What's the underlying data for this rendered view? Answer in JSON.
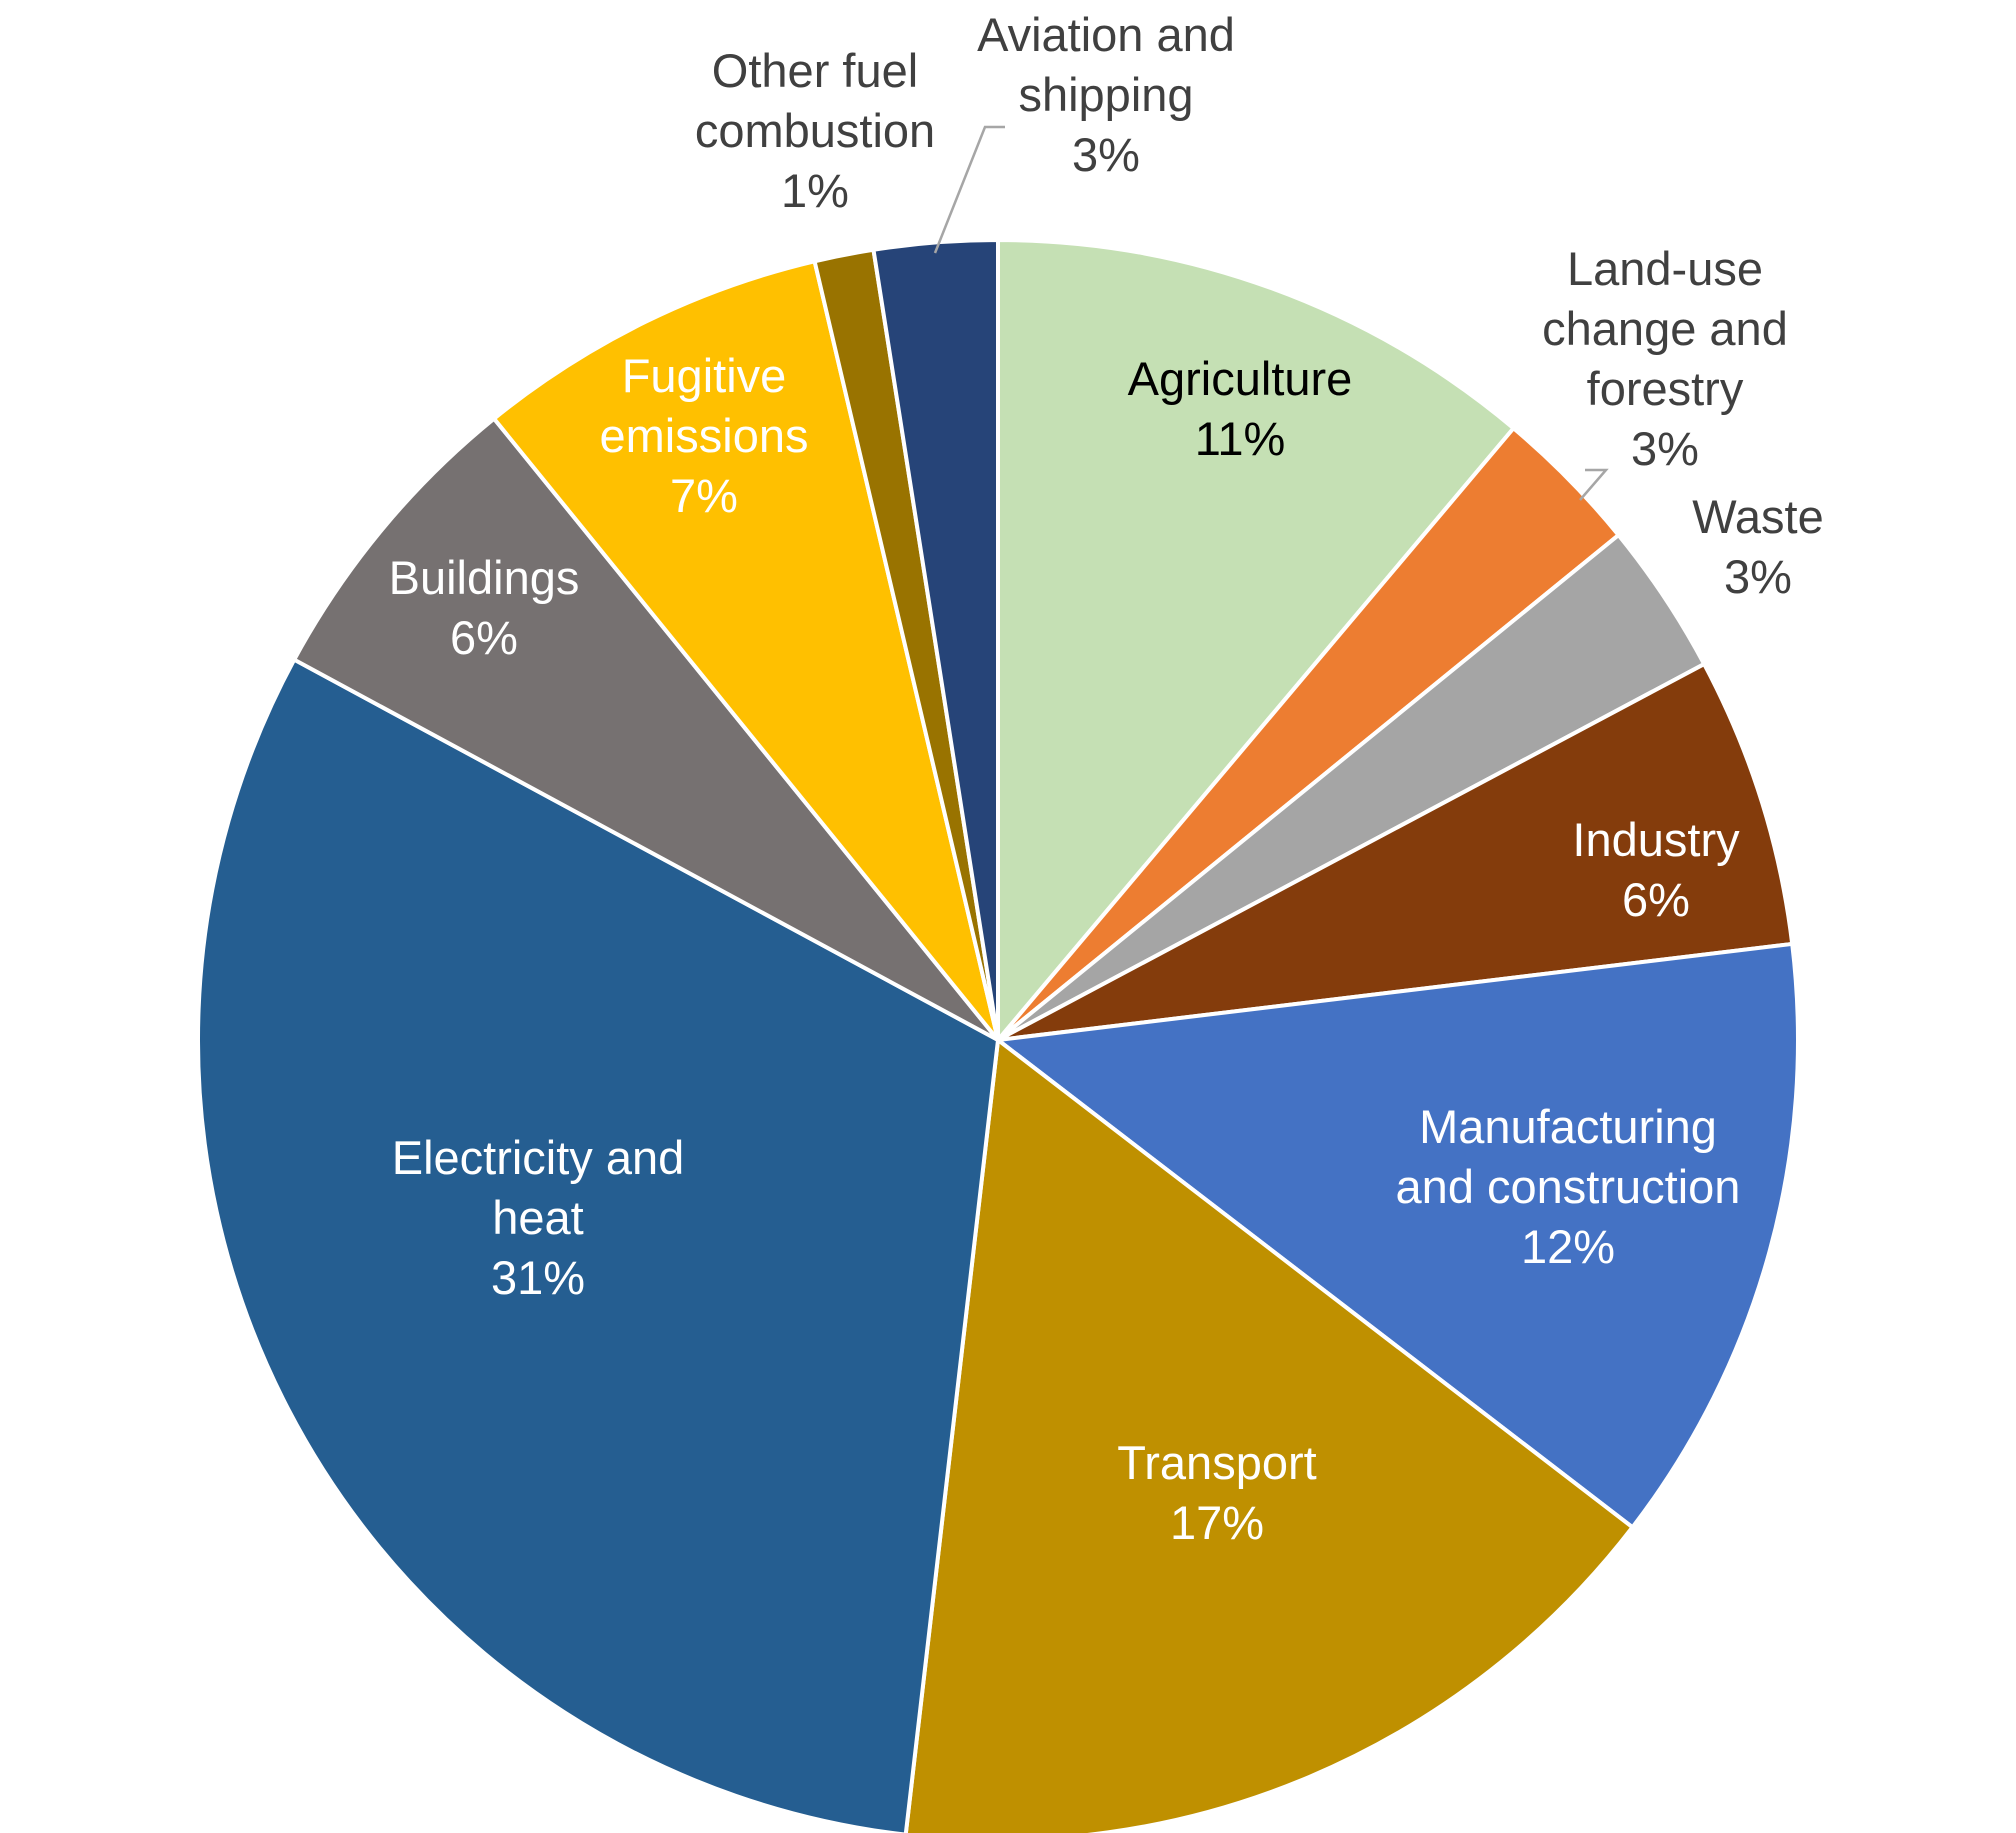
{
  "chart_data": {
    "type": "pie",
    "title": "",
    "start_angle_deg": 0,
    "direction": "clockwise",
    "slices": [
      {
        "label": "Agriculture",
        "pct_label": "11%",
        "value": 11.2,
        "color": "#c5e0b4",
        "text_color": "#000000"
      },
      {
        "label": "Land-use change and forestry",
        "pct_label": "3%",
        "value": 3.0,
        "color": "#ed7d31",
        "text_color": "#404040"
      },
      {
        "label": "Waste",
        "pct_label": "3%",
        "value": 3.1,
        "color": "#a5a5a5",
        "text_color": "#404040"
      },
      {
        "label": "Industry",
        "pct_label": "6%",
        "value": 5.9,
        "color": "#843c0c",
        "text_color": "#ffffff"
      },
      {
        "label": "Manufacturing and construction",
        "pct_label": "12%",
        "value": 12.4,
        "color": "#4472c4",
        "text_color": "#ffffff"
      },
      {
        "label": "Transport",
        "pct_label": "17%",
        "value": 16.5,
        "color": "#bf9000",
        "text_color": "#ffffff"
      },
      {
        "label": "Electricity and heat",
        "pct_label": "31%",
        "value": 31.2,
        "color": "#255e91",
        "text_color": "#ffffff"
      },
      {
        "label": "Buildings",
        "pct_label": "6%",
        "value": 6.3,
        "color": "#767171",
        "text_color": "#ffffff"
      },
      {
        "label": "Fugitive emissions",
        "pct_label": "7%",
        "value": 7.2,
        "color": "#ffc000",
        "text_color": "#ffffff"
      },
      {
        "label": "Other fuel combustion",
        "pct_label": "1%",
        "value": 1.2,
        "color": "#997300",
        "text_color": "#404040"
      },
      {
        "label": "Aviation and shipping",
        "pct_label": "3%",
        "value": 2.5,
        "color": "#264478",
        "text_color": "#404040"
      }
    ]
  }
}
